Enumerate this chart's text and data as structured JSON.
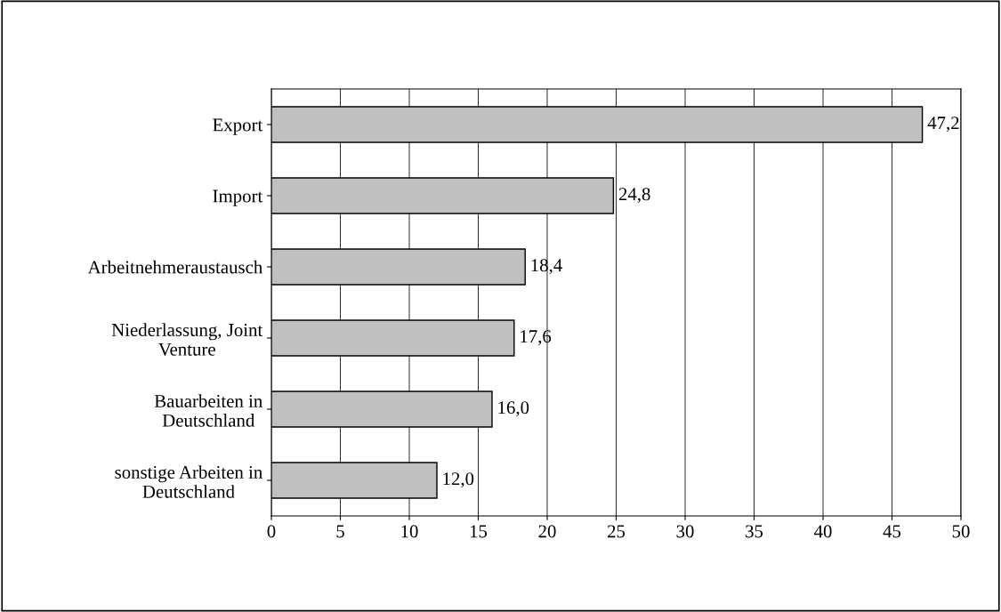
{
  "chart_data": {
    "type": "bar",
    "orientation": "horizontal",
    "categories": [
      "Export",
      "Import",
      "Arbeitnehmeraustausch",
      "Niederlassung, Joint\nVenture",
      "Bauarbeiten in\nDeutschland",
      "sonstige Arbeiten in\nDeutschland"
    ],
    "values": [
      47.2,
      24.8,
      18.4,
      17.6,
      16.0,
      12.0
    ],
    "value_labels": [
      "47,2",
      "24,8",
      "18,4",
      "17,6",
      "16,0",
      "12,0"
    ],
    "color": "#c0c0c0",
    "xlim": [
      0,
      50
    ],
    "xticks": [
      0,
      5,
      10,
      15,
      20,
      25,
      30,
      35,
      40,
      45,
      50
    ],
    "grid": "x"
  }
}
